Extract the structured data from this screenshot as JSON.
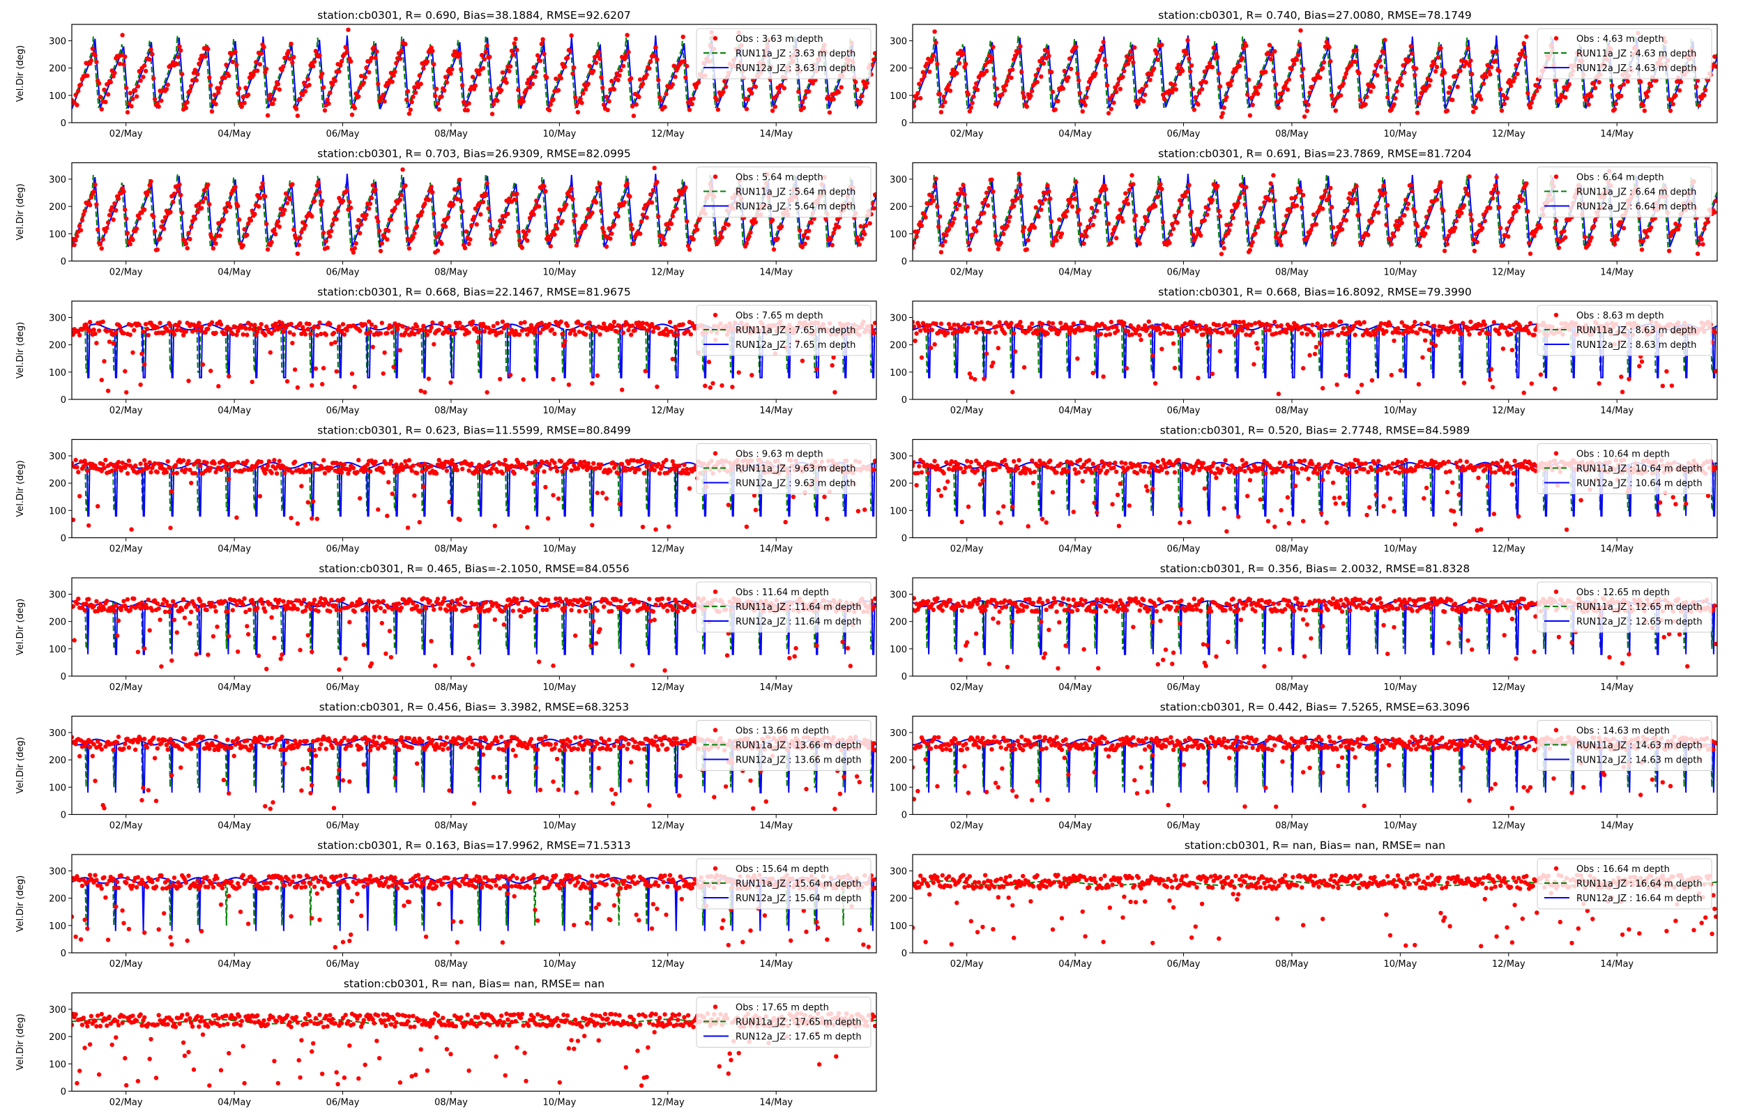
{
  "figure": {
    "ylabel": "Vel.Dir (deg)",
    "x_tick_labels": [
      "02/May",
      "04/May",
      "06/May",
      "08/May",
      "10/May",
      "12/May",
      "14/May"
    ],
    "y_tick_labels": [
      "0",
      "100",
      "200",
      "300"
    ],
    "colors": {
      "obs": "#ff0000",
      "run11a": "#008000",
      "run12a": "#0000ff"
    }
  },
  "chart_data": [
    {
      "type": "scatter+line",
      "title": "station:cb0301, R= 0.690, Bias=38.1884, RMSE=92.6207",
      "depth": "3.63",
      "ylabel": "Vel.Dir (deg)",
      "ylim": [
        0,
        360
      ],
      "x_ticks": [
        "02/May",
        "04/May",
        "06/May",
        "08/May",
        "10/May",
        "12/May",
        "14/May"
      ],
      "legend": [
        "Obs : 3.63 m depth",
        "RUN11a_JZ : 3.63 m depth",
        "RUN12a_JZ : 3.63 m depth"
      ],
      "series": [
        {
          "name": "Obs : 3.63 m depth",
          "style": "points"
        },
        {
          "name": "RUN11a_JZ : 3.63 m depth",
          "style": "dashed"
        },
        {
          "name": "RUN12a_JZ : 3.63 m depth",
          "style": "solid"
        }
      ]
    },
    {
      "type": "scatter+line",
      "title": "station:cb0301, R= 0.740, Bias=27.0080, RMSE=78.1749",
      "depth": "4.63",
      "ylabel": "",
      "ylim": [
        0,
        360
      ],
      "x_ticks": [
        "02/May",
        "04/May",
        "06/May",
        "08/May",
        "10/May",
        "12/May",
        "14/May"
      ],
      "legend": [
        "Obs : 4.63 m depth",
        "RUN11a_JZ : 4.63 m depth",
        "RUN12a_JZ : 4.63 m depth"
      ],
      "series": [
        {
          "name": "Obs : 4.63 m depth",
          "style": "points"
        },
        {
          "name": "RUN11a_JZ : 4.63 m depth",
          "style": "dashed"
        },
        {
          "name": "RUN12a_JZ : 4.63 m depth",
          "style": "solid"
        }
      ]
    },
    {
      "type": "scatter+line",
      "title": "station:cb0301, R= 0.703, Bias=26.9309, RMSE=82.0995",
      "depth": "5.64",
      "ylabel": "Vel.Dir (deg)",
      "ylim": [
        0,
        360
      ],
      "x_ticks": [
        "02/May",
        "04/May",
        "06/May",
        "08/May",
        "10/May",
        "12/May",
        "14/May"
      ],
      "legend": [
        "Obs : 5.64 m depth",
        "RUN11a_JZ : 5.64 m depth",
        "RUN12a_JZ : 5.64 m depth"
      ],
      "series": [
        {
          "name": "Obs : 5.64 m depth",
          "style": "points"
        },
        {
          "name": "RUN11a_JZ : 5.64 m depth",
          "style": "dashed"
        },
        {
          "name": "RUN12a_JZ : 5.64 m depth",
          "style": "solid"
        }
      ]
    },
    {
      "type": "scatter+line",
      "title": "station:cb0301, R= 0.691, Bias=23.7869, RMSE=81.7204",
      "depth": "6.64",
      "ylabel": "",
      "ylim": [
        0,
        360
      ],
      "x_ticks": [
        "02/May",
        "04/May",
        "06/May",
        "08/May",
        "10/May",
        "12/May",
        "14/May"
      ],
      "legend": [
        "Obs : 6.64 m depth",
        "RUN11a_JZ : 6.64 m depth",
        "RUN12a_JZ : 6.64 m depth"
      ],
      "series": [
        {
          "name": "Obs : 6.64 m depth",
          "style": "points"
        },
        {
          "name": "RUN11a_JZ : 6.64 m depth",
          "style": "dashed"
        },
        {
          "name": "RUN12a_JZ : 6.64 m depth",
          "style": "solid"
        }
      ]
    },
    {
      "type": "scatter+line",
      "title": "station:cb0301, R= 0.668, Bias=22.1467, RMSE=81.9675",
      "depth": "7.65",
      "ylabel": "Vel.Dir (deg)",
      "ylim": [
        0,
        360
      ],
      "x_ticks": [
        "02/May",
        "04/May",
        "06/May",
        "08/May",
        "10/May",
        "12/May",
        "14/May"
      ],
      "legend": [
        "Obs : 7.65 m depth",
        "RUN11a_JZ : 7.65 m depth",
        "RUN12a_JZ : 7.65 m depth"
      ],
      "series": [
        {
          "name": "Obs : 7.65 m depth",
          "style": "points"
        },
        {
          "name": "RUN11a_JZ : 7.65 m depth",
          "style": "dashed"
        },
        {
          "name": "RUN12a_JZ : 7.65 m depth",
          "style": "solid"
        }
      ]
    },
    {
      "type": "scatter+line",
      "title": "station:cb0301, R= 0.668, Bias=16.8092, RMSE=79.3990",
      "depth": "8.63",
      "ylabel": "",
      "ylim": [
        0,
        360
      ],
      "x_ticks": [
        "02/May",
        "04/May",
        "06/May",
        "08/May",
        "10/May",
        "12/May",
        "14/May"
      ],
      "legend": [
        "Obs : 8.63 m depth",
        "RUN11a_JZ : 8.63 m depth",
        "RUN12a_JZ : 8.63 m depth"
      ],
      "series": [
        {
          "name": "Obs : 8.63 m depth",
          "style": "points"
        },
        {
          "name": "RUN11a_JZ : 8.63 m depth",
          "style": "dashed"
        },
        {
          "name": "RUN12a_JZ : 8.63 m depth",
          "style": "solid"
        }
      ]
    },
    {
      "type": "scatter+line",
      "title": "station:cb0301, R= 0.623, Bias=11.5599, RMSE=80.8499",
      "depth": "9.63",
      "ylabel": "Vel.Dir (deg)",
      "ylim": [
        0,
        360
      ],
      "x_ticks": [
        "02/May",
        "04/May",
        "06/May",
        "08/May",
        "10/May",
        "12/May",
        "14/May"
      ],
      "legend": [
        "Obs : 9.63 m depth",
        "RUN11a_JZ : 9.63 m depth",
        "RUN12a_JZ : 9.63 m depth"
      ],
      "series": [
        {
          "name": "Obs : 9.63 m depth",
          "style": "points"
        },
        {
          "name": "RUN11a_JZ : 9.63 m depth",
          "style": "dashed"
        },
        {
          "name": "RUN12a_JZ : 9.63 m depth",
          "style": "solid"
        }
      ]
    },
    {
      "type": "scatter+line",
      "title": "station:cb0301, R= 0.520, Bias= 2.7748, RMSE=84.5989",
      "depth": "10.64",
      "ylabel": "",
      "ylim": [
        0,
        360
      ],
      "x_ticks": [
        "02/May",
        "04/May",
        "06/May",
        "08/May",
        "10/May",
        "12/May",
        "14/May"
      ],
      "legend": [
        "Obs : 10.64 m depth",
        "RUN11a_JZ : 10.64 m depth",
        "RUN12a_JZ : 10.64 m depth"
      ],
      "series": [
        {
          "name": "Obs : 10.64 m depth",
          "style": "points"
        },
        {
          "name": "RUN11a_JZ : 10.64 m depth",
          "style": "dashed"
        },
        {
          "name": "RUN12a_JZ : 10.64 m depth",
          "style": "solid"
        }
      ]
    },
    {
      "type": "scatter+line",
      "title": "station:cb0301, R= 0.465, Bias=-2.1050, RMSE=84.0556",
      "depth": "11.64",
      "ylabel": "Vel.Dir (deg)",
      "ylim": [
        0,
        360
      ],
      "x_ticks": [
        "02/May",
        "04/May",
        "06/May",
        "08/May",
        "10/May",
        "12/May",
        "14/May"
      ],
      "legend": [
        "Obs : 11.64 m depth",
        "RUN11a_JZ : 11.64 m depth",
        "RUN12a_JZ : 11.64 m depth"
      ],
      "series": [
        {
          "name": "Obs : 11.64 m depth",
          "style": "points"
        },
        {
          "name": "RUN11a_JZ : 11.64 m depth",
          "style": "dashed"
        },
        {
          "name": "RUN12a_JZ : 11.64 m depth",
          "style": "solid"
        }
      ]
    },
    {
      "type": "scatter+line",
      "title": "station:cb0301, R= 0.356, Bias= 2.0032, RMSE=81.8328",
      "depth": "12.65",
      "ylabel": "",
      "ylim": [
        0,
        360
      ],
      "x_ticks": [
        "02/May",
        "04/May",
        "06/May",
        "08/May",
        "10/May",
        "12/May",
        "14/May"
      ],
      "legend": [
        "Obs : 12.65 m depth",
        "RUN11a_JZ : 12.65 m depth",
        "RUN12a_JZ : 12.65 m depth"
      ],
      "series": [
        {
          "name": "Obs : 12.65 m depth",
          "style": "points"
        },
        {
          "name": "RUN11a_JZ : 12.65 m depth",
          "style": "dashed"
        },
        {
          "name": "RUN12a_JZ : 12.65 m depth",
          "style": "solid"
        }
      ]
    },
    {
      "type": "scatter+line",
      "title": "station:cb0301, R= 0.456, Bias= 3.3982, RMSE=68.3253",
      "depth": "13.66",
      "ylabel": "Vel.Dir (deg)",
      "ylim": [
        0,
        360
      ],
      "x_ticks": [
        "02/May",
        "04/May",
        "06/May",
        "08/May",
        "10/May",
        "12/May",
        "14/May"
      ],
      "legend": [
        "Obs : 13.66 m depth",
        "RUN11a_JZ : 13.66 m depth",
        "RUN12a_JZ : 13.66 m depth"
      ],
      "series": [
        {
          "name": "Obs : 13.66 m depth",
          "style": "points"
        },
        {
          "name": "RUN11a_JZ : 13.66 m depth",
          "style": "dashed"
        },
        {
          "name": "RUN12a_JZ : 13.66 m depth",
          "style": "solid"
        }
      ]
    },
    {
      "type": "scatter+line",
      "title": "station:cb0301, R= 0.442, Bias= 7.5265, RMSE=63.3096",
      "depth": "14.63",
      "ylabel": "",
      "ylim": [
        0,
        360
      ],
      "x_ticks": [
        "02/May",
        "04/May",
        "06/May",
        "08/May",
        "10/May",
        "12/May",
        "14/May"
      ],
      "legend": [
        "Obs : 14.63 m depth",
        "RUN11a_JZ : 14.63 m depth",
        "RUN12a_JZ : 14.63 m depth"
      ],
      "series": [
        {
          "name": "Obs : 14.63 m depth",
          "style": "points"
        },
        {
          "name": "RUN11a_JZ : 14.63 m depth",
          "style": "dashed"
        },
        {
          "name": "RUN12a_JZ : 14.63 m depth",
          "style": "solid"
        }
      ]
    },
    {
      "type": "scatter+line",
      "title": "station:cb0301, R= 0.163, Bias=17.9962, RMSE=71.5313",
      "depth": "15.64",
      "ylabel": "Vel.Dir (deg)",
      "ylim": [
        0,
        360
      ],
      "x_ticks": [
        "02/May",
        "04/May",
        "06/May",
        "08/May",
        "10/May",
        "12/May",
        "14/May"
      ],
      "legend": [
        "Obs : 15.64 m depth",
        "RUN11a_JZ : 15.64 m depth",
        "RUN12a_JZ : 15.64 m depth"
      ],
      "series": [
        {
          "name": "Obs : 15.64 m depth",
          "style": "points"
        },
        {
          "name": "RUN11a_JZ : 15.64 m depth",
          "style": "dashed"
        },
        {
          "name": "RUN12a_JZ : 15.64 m depth",
          "style": "solid"
        }
      ]
    },
    {
      "type": "scatter+line",
      "title": "station:cb0301, R=   nan, Bias=    nan, RMSE=    nan",
      "depth": "16.64",
      "ylabel": "",
      "ylim": [
        0,
        360
      ],
      "x_ticks": [
        "02/May",
        "04/May",
        "06/May",
        "08/May",
        "10/May",
        "12/May",
        "14/May"
      ],
      "legend": [
        "Obs : 16.64 m depth",
        "RUN11a_JZ : 16.64 m depth",
        "RUN12a_JZ : 16.64 m depth"
      ],
      "series": [
        {
          "name": "Obs : 16.64 m depth",
          "style": "points"
        },
        {
          "name": "RUN11a_JZ : 16.64 m depth",
          "style": "dashed"
        },
        {
          "name": "RUN12a_JZ : 16.64 m depth",
          "style": "solid"
        }
      ]
    },
    {
      "type": "scatter+line",
      "title": "station:cb0301, R=   nan, Bias=    nan, RMSE=    nan",
      "depth": "17.65",
      "ylabel": "Vel.Dir (deg)",
      "ylim": [
        0,
        360
      ],
      "x_ticks": [
        "02/May",
        "04/May",
        "06/May",
        "08/May",
        "10/May",
        "12/May",
        "14/May"
      ],
      "legend": [
        "Obs : 17.65 m depth",
        "RUN11a_JZ : 17.65 m depth",
        "RUN12a_JZ : 17.65 m depth"
      ],
      "series": [
        {
          "name": "Obs : 17.65 m depth",
          "style": "points"
        },
        {
          "name": "RUN11a_JZ : 17.65 m depth",
          "style": "dashed"
        },
        {
          "name": "RUN12a_JZ : 17.65 m depth",
          "style": "solid"
        }
      ]
    }
  ]
}
